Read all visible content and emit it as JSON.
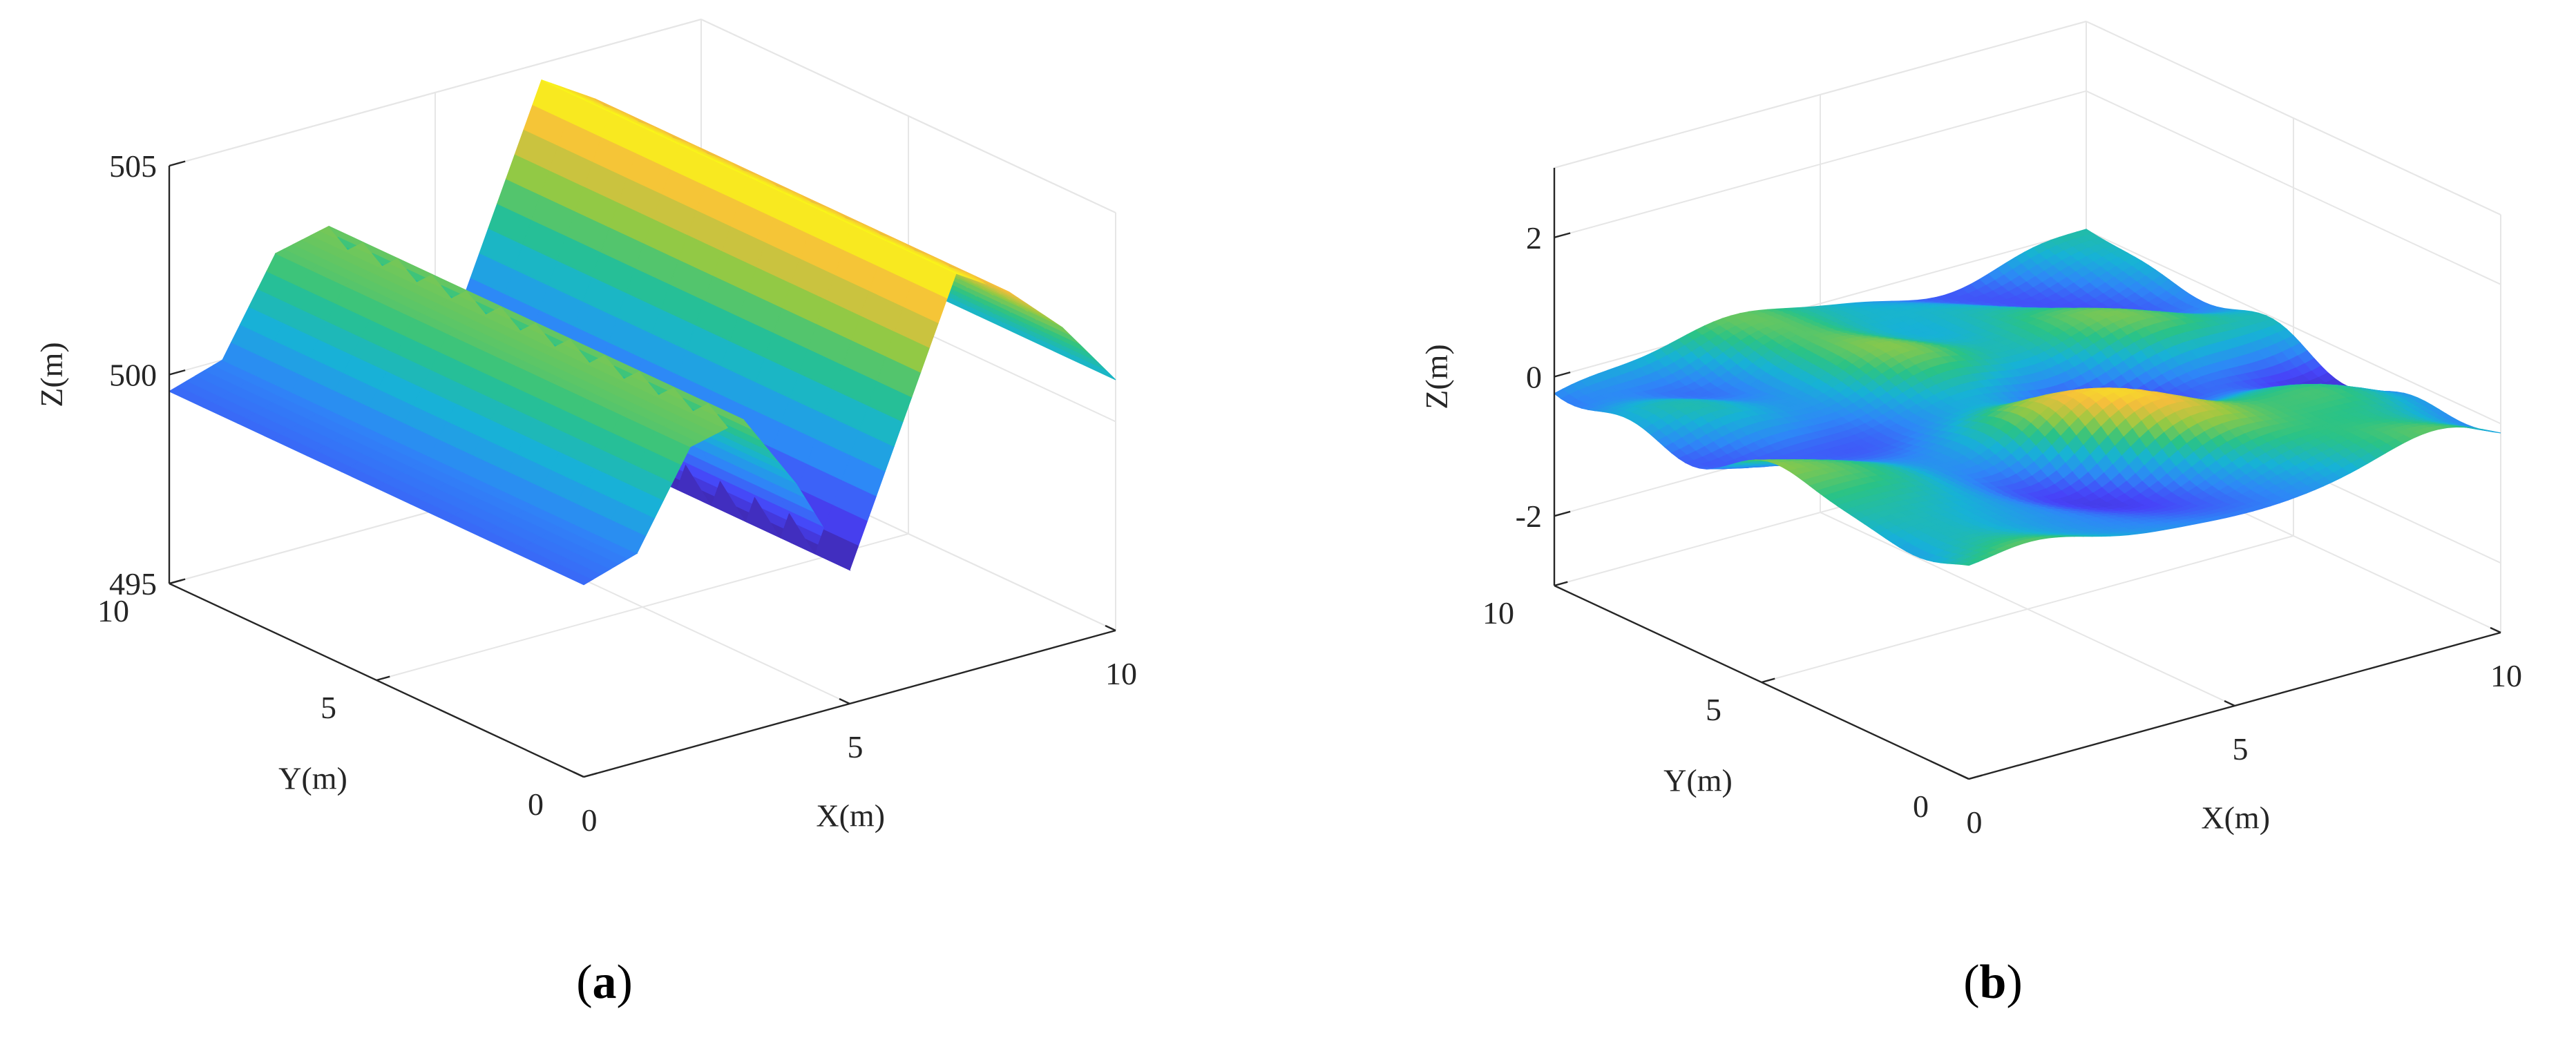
{
  "chart_data": [
    {
      "type": "surface3d",
      "panel_label": "a",
      "xlabel": "X(m)",
      "ylabel": "Y(m)",
      "zlabel": "Z(m)",
      "xlim": [
        0,
        10
      ],
      "ylim": [
        0,
        10
      ],
      "zlim": [
        495,
        505
      ],
      "xticks": [
        "0",
        "5",
        "10"
      ],
      "yticks": [
        "0",
        "5",
        "10"
      ],
      "zticks": [
        "495",
        "500",
        "505"
      ],
      "grid": true,
      "colormap": "parula",
      "x": [
        0,
        1,
        2,
        3,
        4,
        5,
        6,
        7,
        8,
        9,
        10
      ],
      "profile_z": [
        499.6,
        500.0,
        502.2,
        502.5,
        500.6,
        498.2,
        501.4,
        504.6,
        503.8,
        502.6,
        501.0
      ],
      "profile_note": "Z varies along X only; constant along Y"
    },
    {
      "type": "surface3d",
      "panel_label": "b",
      "xlabel": "X(m)",
      "ylabel": "Y(m)",
      "zlabel": "Z(m)",
      "xlim": [
        0,
        10
      ],
      "ylim": [
        0,
        10
      ],
      "zlim": [
        -3,
        3
      ],
      "xticks": [
        "0",
        "5",
        "10"
      ],
      "yticks": [
        "0",
        "5",
        "10"
      ],
      "zticks": [
        "-2",
        "0",
        "2"
      ],
      "grid": true,
      "colormap": "parula",
      "z_range": [
        -0.5,
        0.5
      ],
      "surface_note": "random rough surface, small amplitude"
    }
  ],
  "captions": [
    {
      "open": "(",
      "label": "a",
      "close": ")"
    },
    {
      "open": "(",
      "label": "b",
      "close": ")"
    }
  ],
  "colors": {
    "parula": [
      "#3e26a8",
      "#4743f8",
      "#2e87f7",
      "#17b2d6",
      "#2ac386",
      "#97c942",
      "#f5bd3c",
      "#f9fb15"
    ],
    "axis": "#262626",
    "grid": "#e6e6e6"
  }
}
